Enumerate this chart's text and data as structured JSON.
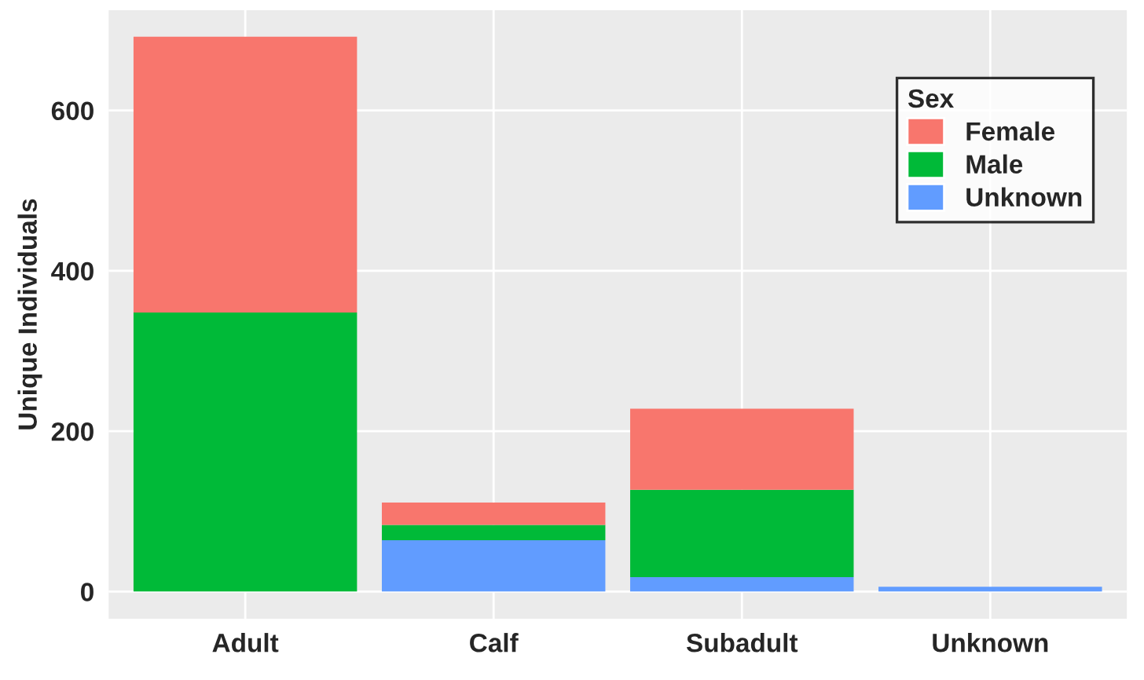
{
  "chart_data": {
    "type": "bar",
    "stacked": true,
    "ylabel": "Unique Individuals",
    "legend_title": "Sex",
    "categories": [
      "Adult",
      "Calf",
      "Subadult",
      "Unknown"
    ],
    "series": [
      {
        "name": "Unknown",
        "color": "#619cff",
        "values": [
          0,
          64,
          18,
          6
        ]
      },
      {
        "name": "Male",
        "color": "#00ba38",
        "values": [
          348,
          19,
          109,
          0
        ]
      },
      {
        "name": "Female",
        "color": "#f8766d",
        "values": [
          344,
          28,
          101,
          0
        ]
      }
    ],
    "ylim": [
      -34,
      725
    ],
    "yticks": [
      0,
      200,
      400,
      600
    ],
    "grid": true,
    "legend": "top right"
  }
}
